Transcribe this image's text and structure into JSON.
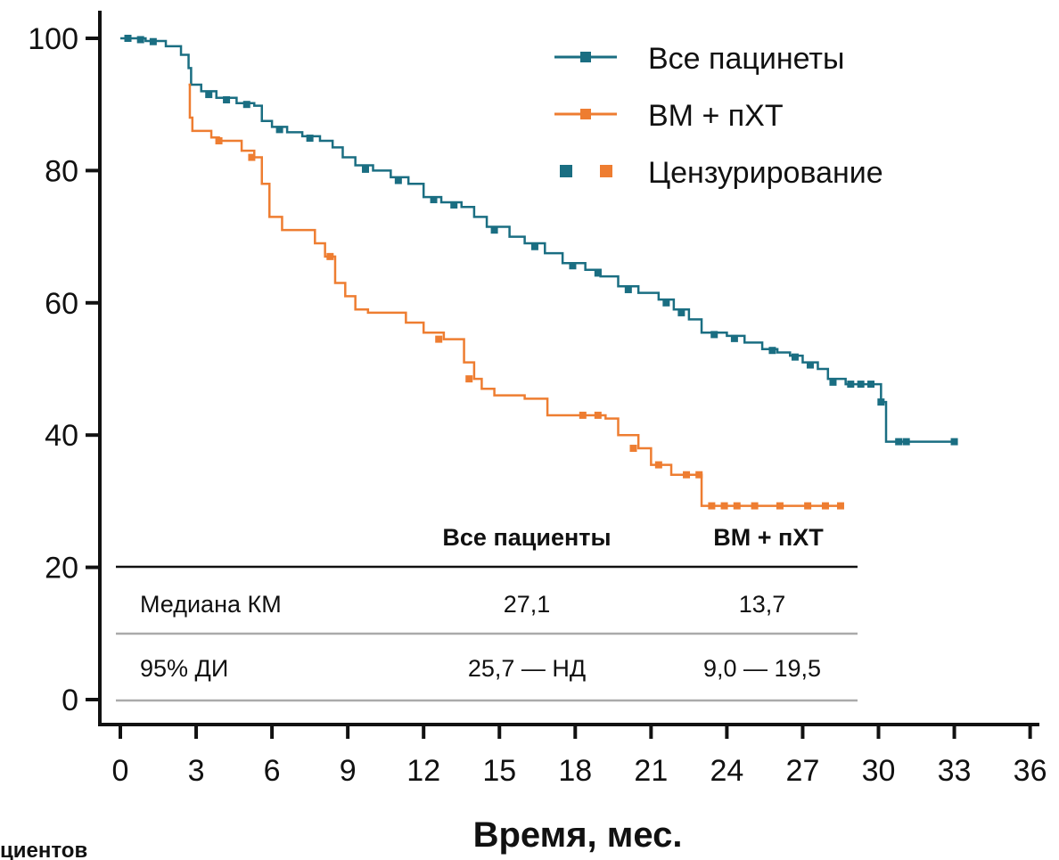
{
  "chart_data": {
    "type": "line",
    "title": "",
    "xlabel": "Время, мес.",
    "ylabel": "",
    "xlim": [
      0,
      36
    ],
    "ylim": [
      0,
      100
    ],
    "xticks": [
      "0",
      "3",
      "6",
      "9",
      "12",
      "15",
      "18",
      "21",
      "24",
      "27",
      "30",
      "33",
      "36"
    ],
    "yticks": [
      "0",
      "20",
      "40",
      "60",
      "80",
      "100"
    ],
    "legend_position": "top-right",
    "legend": {
      "all_label": "Все пацинеты",
      "bm_label": "ВМ + пХТ",
      "censor_label": "Цензурирование"
    },
    "series": [
      {
        "name": "Все пацинеты",
        "color": "#1a6e82",
        "steps": [
          [
            0,
            100
          ],
          [
            1,
            99.6
          ],
          [
            1.8,
            98.8
          ],
          [
            2.4,
            97.5
          ],
          [
            2.7,
            95.5
          ],
          [
            2.8,
            93
          ],
          [
            3.2,
            92
          ],
          [
            3.8,
            91
          ],
          [
            4.6,
            90.2
          ],
          [
            5.3,
            89.8
          ],
          [
            5.6,
            87.5
          ],
          [
            6.0,
            86.6
          ],
          [
            6.6,
            85.8
          ],
          [
            7.2,
            85.2
          ],
          [
            7.9,
            84.5
          ],
          [
            8.4,
            83.5
          ],
          [
            8.8,
            82
          ],
          [
            9.3,
            80.8
          ],
          [
            10.0,
            80
          ],
          [
            10.7,
            79
          ],
          [
            11.4,
            78
          ],
          [
            12.0,
            76
          ],
          [
            12.7,
            75.2
          ],
          [
            13.5,
            74.5
          ],
          [
            14.0,
            73
          ],
          [
            14.5,
            71.5
          ],
          [
            15.4,
            70
          ],
          [
            16.0,
            69
          ],
          [
            16.8,
            67.5
          ],
          [
            17.5,
            66
          ],
          [
            18.4,
            65
          ],
          [
            19.0,
            64
          ],
          [
            19.7,
            62.5
          ],
          [
            20.5,
            61.5
          ],
          [
            21.3,
            60.5
          ],
          [
            21.9,
            59
          ],
          [
            22.5,
            57.5
          ],
          [
            23.0,
            55.5
          ],
          [
            24.0,
            55
          ],
          [
            24.7,
            54
          ],
          [
            25.4,
            53
          ],
          [
            26.0,
            52.5
          ],
          [
            26.5,
            52
          ],
          [
            27.0,
            51
          ],
          [
            27.6,
            50
          ],
          [
            28.0,
            48.5
          ],
          [
            28.7,
            47.7
          ],
          [
            29.8,
            47.7
          ],
          [
            30.1,
            45
          ],
          [
            30.3,
            39
          ],
          [
            33.0,
            39
          ]
        ],
        "censored": [
          [
            0.3,
            100
          ],
          [
            0.8,
            99.8
          ],
          [
            1.3,
            99.5
          ],
          [
            3.5,
            91.5
          ],
          [
            4.2,
            90.7
          ],
          [
            5.0,
            90
          ],
          [
            6.3,
            86.2
          ],
          [
            7.5,
            84.9
          ],
          [
            9.7,
            80.2
          ],
          [
            11.0,
            78.5
          ],
          [
            12.4,
            75.6
          ],
          [
            13.2,
            74.8
          ],
          [
            14.8,
            71
          ],
          [
            16.4,
            68.5
          ],
          [
            17.9,
            65.6
          ],
          [
            18.9,
            64.5
          ],
          [
            20.1,
            62
          ],
          [
            21.6,
            60
          ],
          [
            22.2,
            58.5
          ],
          [
            23.5,
            55.2
          ],
          [
            24.3,
            54.6
          ],
          [
            25.8,
            52.8
          ],
          [
            26.7,
            51.8
          ],
          [
            27.3,
            50.6
          ],
          [
            28.2,
            48
          ],
          [
            28.9,
            47.7
          ],
          [
            29.3,
            47.7
          ],
          [
            29.7,
            47.7
          ],
          [
            30.1,
            45
          ],
          [
            30.8,
            39
          ],
          [
            31.1,
            39
          ],
          [
            33.0,
            39
          ]
        ]
      },
      {
        "name": "ВМ + пХТ",
        "color": "#ee7d31",
        "steps": [
          [
            2.7,
            93
          ],
          [
            2.75,
            88
          ],
          [
            2.85,
            86
          ],
          [
            3.6,
            85
          ],
          [
            3.9,
            84.5
          ],
          [
            4.8,
            83
          ],
          [
            5.3,
            82
          ],
          [
            5.6,
            78
          ],
          [
            5.9,
            73
          ],
          [
            6.4,
            71
          ],
          [
            7.7,
            69
          ],
          [
            8.1,
            67
          ],
          [
            8.5,
            63
          ],
          [
            8.9,
            61
          ],
          [
            9.3,
            59
          ],
          [
            9.8,
            58.5
          ],
          [
            11.3,
            57
          ],
          [
            12.0,
            55.5
          ],
          [
            12.8,
            54.5
          ],
          [
            13.6,
            51
          ],
          [
            14.0,
            48.5
          ],
          [
            14.3,
            47
          ],
          [
            14.8,
            46
          ],
          [
            16.0,
            45.5
          ],
          [
            16.9,
            43
          ],
          [
            19.2,
            42.5
          ],
          [
            19.7,
            40
          ],
          [
            20.5,
            38
          ],
          [
            21.0,
            35.5
          ],
          [
            21.8,
            34
          ],
          [
            23.0,
            29.3
          ],
          [
            28.5,
            29.3
          ]
        ],
        "censored": [
          [
            3.9,
            84.5
          ],
          [
            5.2,
            82
          ],
          [
            8.3,
            67
          ],
          [
            12.6,
            54.5
          ],
          [
            13.8,
            48.5
          ],
          [
            18.3,
            43
          ],
          [
            18.9,
            43
          ],
          [
            20.3,
            38
          ],
          [
            21.3,
            35.5
          ],
          [
            22.4,
            34
          ],
          [
            22.9,
            34
          ],
          [
            23.4,
            29.3
          ],
          [
            23.9,
            29.3
          ],
          [
            24.4,
            29.3
          ],
          [
            25.1,
            29.3
          ],
          [
            26.1,
            29.3
          ],
          [
            27.2,
            29.3
          ],
          [
            27.9,
            29.3
          ],
          [
            28.5,
            29.3
          ]
        ]
      }
    ],
    "table": {
      "col_all": "Все пациенты",
      "col_bm": "ВМ + пХТ",
      "rows": [
        {
          "label": "Медиана КМ",
          "all": "27,1",
          "bm": "13,7"
        },
        {
          "label": "95% ДИ",
          "all": "25,7 — НД",
          "bm": "9,0 — 19,5"
        }
      ]
    },
    "cut_text": "циентов"
  }
}
